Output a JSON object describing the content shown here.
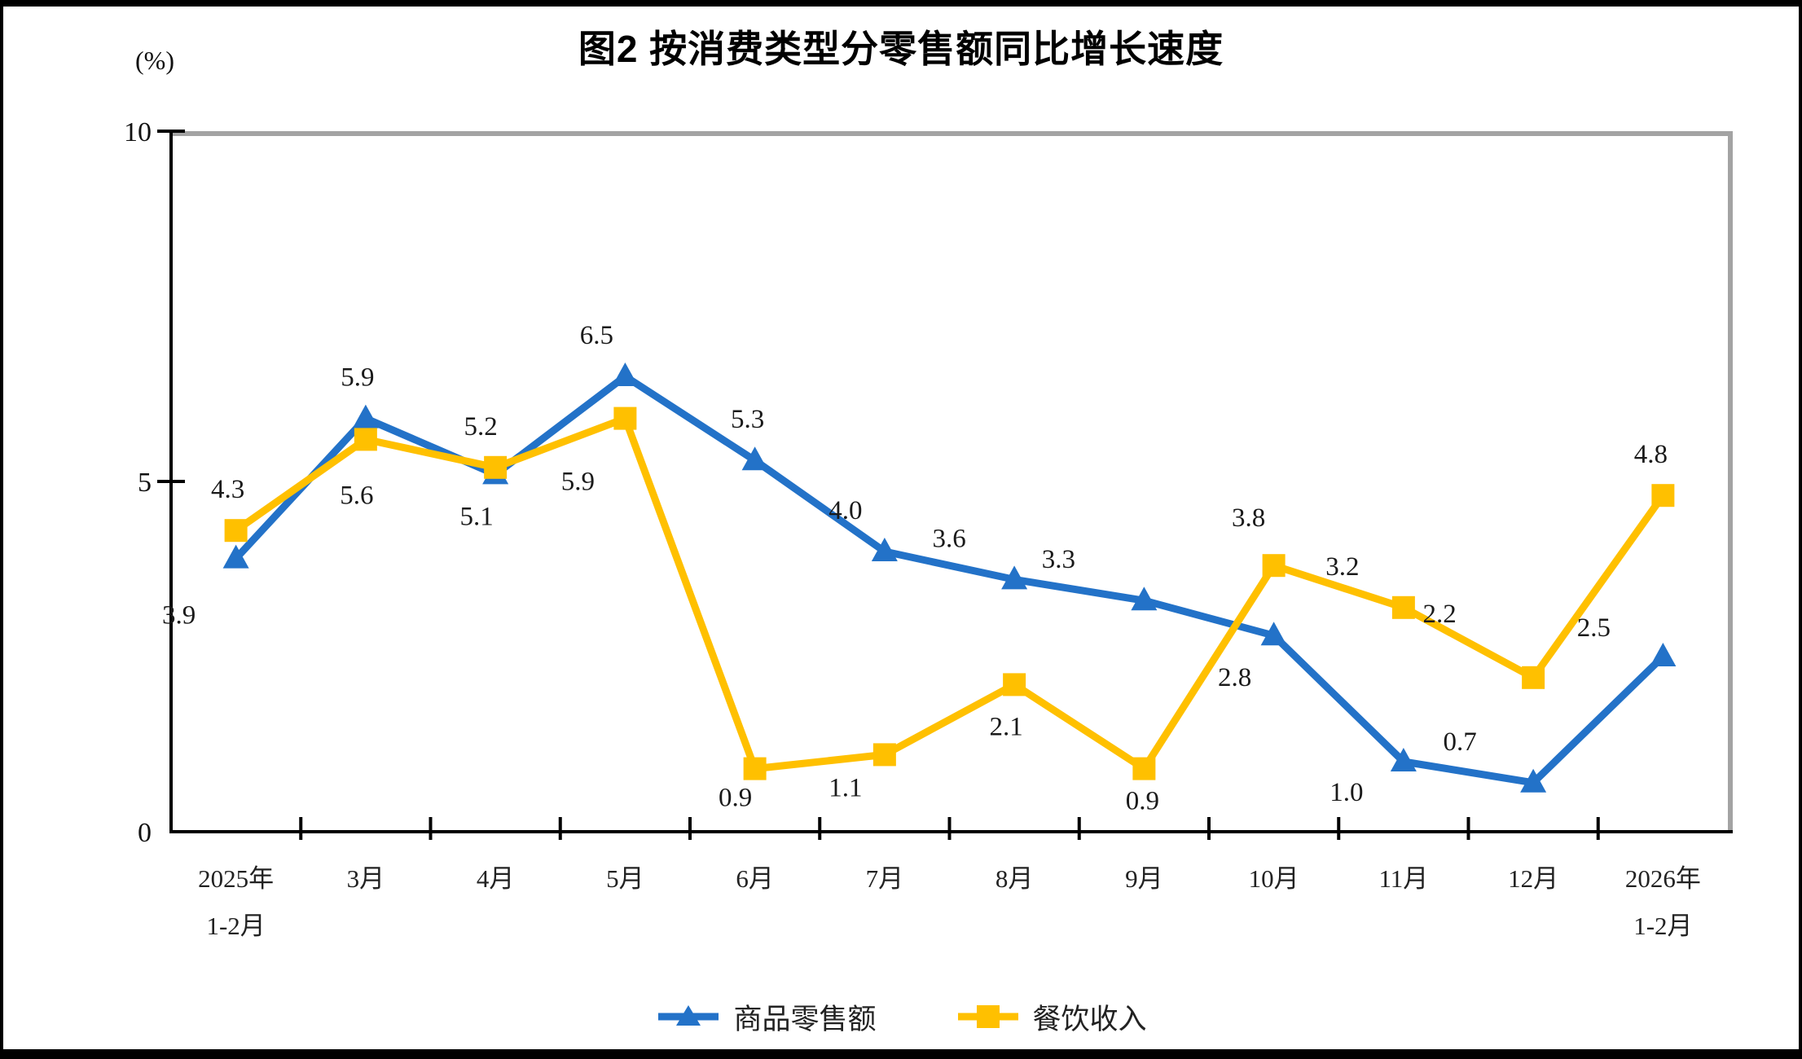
{
  "page": {
    "title": "图2 按消费类型分零售额同比增长速度",
    "unit_label": "(%)"
  },
  "chart_data": {
    "type": "line",
    "title": "图2 按消费类型分零售额同比增长速度",
    "xlabel": "",
    "ylabel": "(%)",
    "ylim": [
      0,
      10
    ],
    "yticks": [
      0,
      5,
      10
    ],
    "grid": false,
    "legend_position": "bottom",
    "categories": [
      [
        "2025年",
        "1-2月"
      ],
      [
        "3月"
      ],
      [
        "4月"
      ],
      [
        "5月"
      ],
      [
        "6月"
      ],
      [
        "7月"
      ],
      [
        "8月"
      ],
      [
        "9月"
      ],
      [
        "10月"
      ],
      [
        "11月"
      ],
      [
        "12月"
      ],
      [
        "2026年",
        "1-2月"
      ]
    ],
    "series": [
      {
        "name": "商品零售额",
        "color": "#2372C8",
        "marker": "triangle",
        "values": [
          3.9,
          5.9,
          5.1,
          6.5,
          5.3,
          4.0,
          3.6,
          3.3,
          2.8,
          1.0,
          0.7,
          2.5
        ],
        "labels": [
          "3.9",
          "5.9",
          "5.1",
          "6.5",
          "5.3",
          "4.0",
          "3.6",
          "3.3",
          "2.8",
          "1.0",
          "0.7",
          "2.5"
        ],
        "label_pos": [
          "below",
          "above",
          "below",
          "above",
          "above",
          "above",
          "above",
          "above",
          "below",
          "below",
          "above",
          "above"
        ],
        "label_dx": [
          -70,
          -10,
          -23,
          -35,
          -9,
          -48,
          -80,
          -105,
          -48,
          -70,
          -90,
          -85
        ],
        "label_dy": [
          18,
          0,
          0,
          0,
          0,
          0,
          0,
          0,
          0,
          -14,
          0,
          15
        ]
      },
      {
        "name": "餐饮收入",
        "color": "#FFC000",
        "marker": "square",
        "values": [
          4.3,
          5.6,
          5.2,
          5.9,
          0.9,
          1.1,
          2.1,
          0.9,
          3.8,
          3.2,
          2.2,
          4.8
        ],
        "labels": [
          "4.3",
          "5.6",
          "5.2",
          "5.9",
          "0.9",
          "1.1",
          "2.1",
          "0.9",
          "3.8",
          "3.2",
          "2.2",
          "4.8"
        ],
        "label_pos": [
          "above",
          "below",
          "above",
          "below",
          "below",
          "below",
          "below",
          "below",
          "above",
          "above",
          "above",
          "above"
        ],
        "label_dx": [
          -10,
          -11,
          -18,
          -58,
          -24,
          -48,
          -10,
          -2,
          -31,
          -75,
          -115,
          -15
        ],
        "label_dy": [
          0,
          17,
          0,
          26,
          -16,
          -11,
          0,
          -12,
          -8,
          0,
          -28,
          0
        ]
      }
    ],
    "colors": {
      "axis": "#000000",
      "plot_border_gray": "#A3A3A3",
      "data_label": "#1a1a1a",
      "tick_label": "#111111"
    }
  }
}
